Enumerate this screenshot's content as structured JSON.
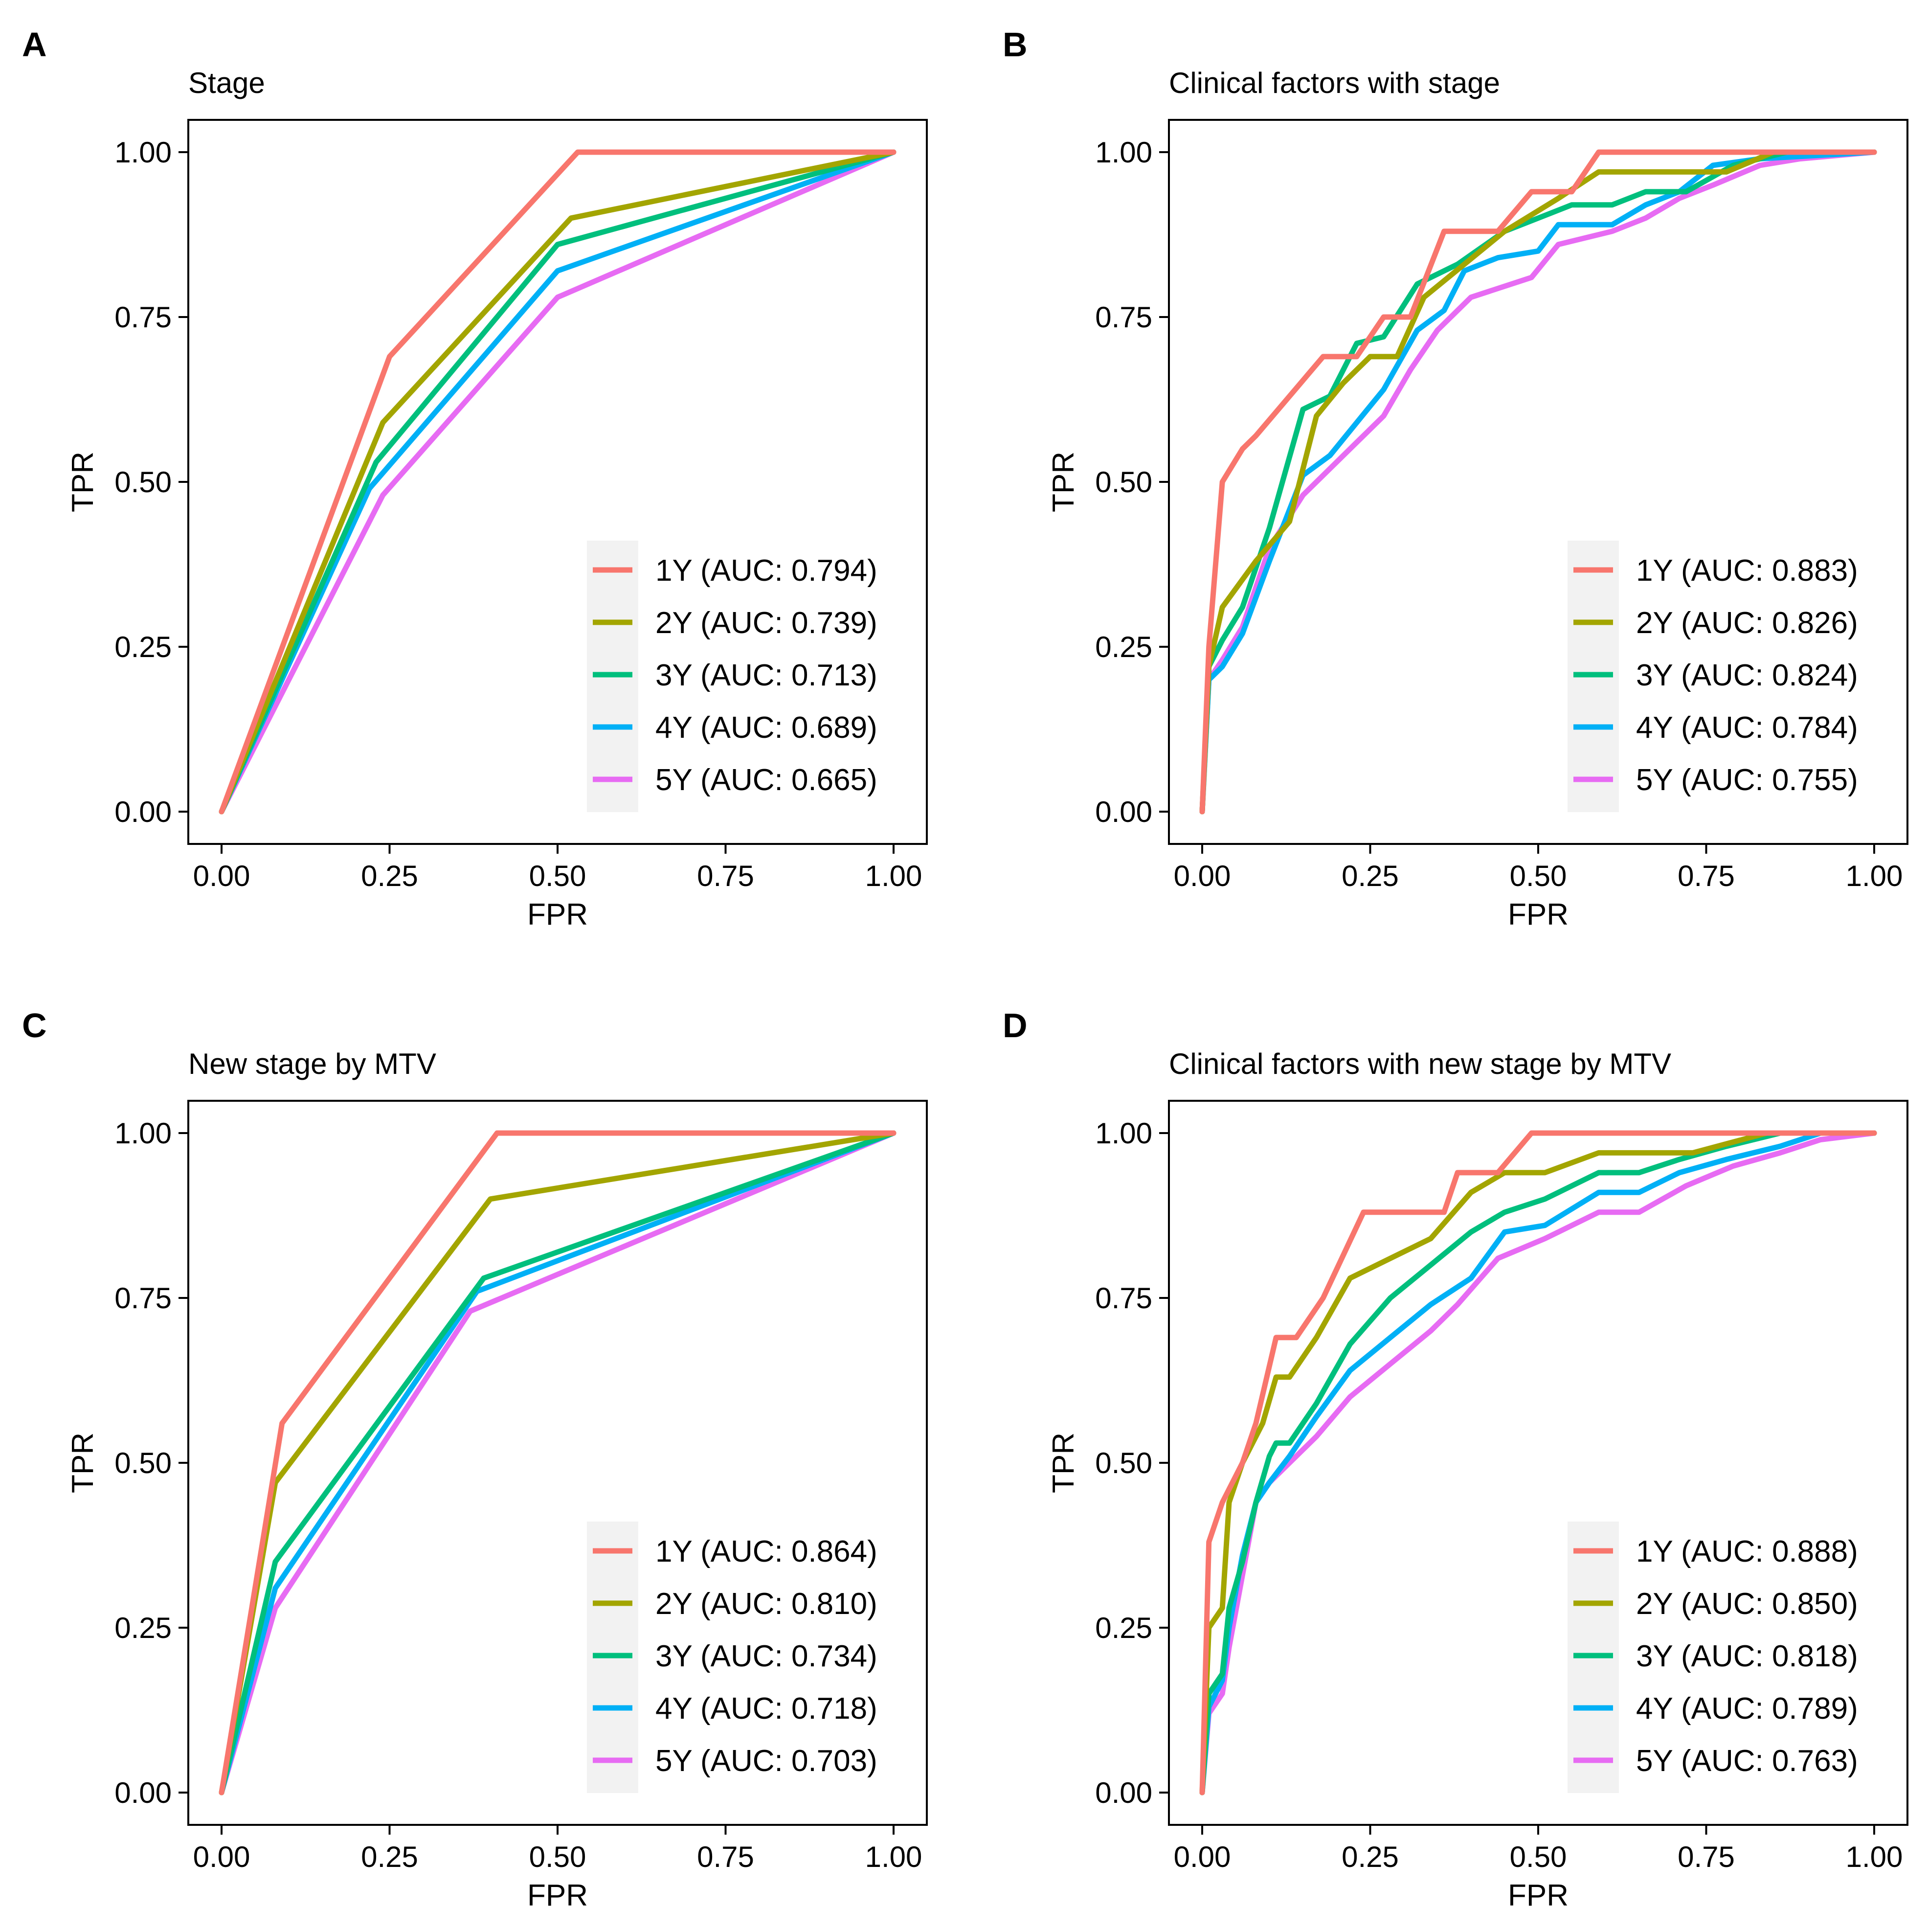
{
  "figure": {
    "x_ticks": [
      "0.00",
      "0.25",
      "0.50",
      "0.75",
      "1.00"
    ],
    "y_ticks": [
      "0.00",
      "0.25",
      "0.50",
      "0.75",
      "1.00"
    ]
  },
  "colors": {
    "1Y": "#F8766D",
    "2Y": "#A3A500",
    "3Y": "#00BF7D",
    "4Y": "#00B0F6",
    "5Y": "#E76BF3"
  },
  "chart_data": [
    {
      "type": "line",
      "panel": "A",
      "title": "Stage",
      "xlabel": "FPR",
      "ylabel": "TPR",
      "xlim": [
        0,
        1
      ],
      "ylim": [
        0,
        1
      ],
      "legend": "bottom-right",
      "series": [
        {
          "name": "1Y",
          "label": "1Y (AUC: 0.794)",
          "x": [
            0,
            0.25,
            0.53,
            1
          ],
          "y": [
            0,
            0.69,
            1,
            1
          ]
        },
        {
          "name": "2Y",
          "label": "2Y (AUC: 0.739)",
          "x": [
            0,
            0.24,
            0.52,
            1
          ],
          "y": [
            0,
            0.59,
            0.9,
            1
          ]
        },
        {
          "name": "3Y",
          "label": "3Y (AUC: 0.713)",
          "x": [
            0,
            0.23,
            0.5,
            1
          ],
          "y": [
            0,
            0.53,
            0.86,
            1
          ]
        },
        {
          "name": "4Y",
          "label": "4Y (AUC: 0.689)",
          "x": [
            0,
            0.22,
            0.5,
            1
          ],
          "y": [
            0,
            0.49,
            0.82,
            1
          ]
        },
        {
          "name": "5Y",
          "label": "5Y (AUC: 0.665)",
          "x": [
            0,
            0.24,
            0.5,
            1
          ],
          "y": [
            0,
            0.48,
            0.78,
            1
          ]
        }
      ]
    },
    {
      "type": "line",
      "panel": "B",
      "title": "Clinical factors with stage",
      "xlabel": "FPR",
      "ylabel": "TPR",
      "xlim": [
        0,
        1
      ],
      "ylim": [
        0,
        1
      ],
      "legend": "bottom-right",
      "series": [
        {
          "name": "1Y",
          "label": "1Y (AUC: 0.883)",
          "x": [
            0,
            0.01,
            0.03,
            0.06,
            0.08,
            0.13,
            0.18,
            0.23,
            0.27,
            0.31,
            0.36,
            0.44,
            0.49,
            0.55,
            0.59,
            1
          ],
          "y": [
            0,
            0.25,
            0.5,
            0.55,
            0.57,
            0.63,
            0.69,
            0.69,
            0.75,
            0.75,
            0.88,
            0.88,
            0.94,
            0.94,
            1,
            1
          ]
        },
        {
          "name": "2Y",
          "label": "2Y (AUC: 0.826)",
          "x": [
            0,
            0.01,
            0.03,
            0.08,
            0.13,
            0.17,
            0.21,
            0.25,
            0.29,
            0.33,
            0.45,
            0.53,
            0.59,
            0.78,
            0.85,
            1
          ],
          "y": [
            0,
            0.22,
            0.31,
            0.38,
            0.44,
            0.6,
            0.65,
            0.69,
            0.69,
            0.78,
            0.88,
            0.93,
            0.97,
            0.97,
            1,
            1
          ]
        },
        {
          "name": "3Y",
          "label": "3Y (AUC: 0.824)",
          "x": [
            0,
            0.01,
            0.03,
            0.06,
            0.1,
            0.15,
            0.19,
            0.23,
            0.27,
            0.32,
            0.38,
            0.45,
            0.55,
            0.61,
            0.66,
            0.72,
            0.79,
            0.87,
            1
          ],
          "y": [
            0,
            0.22,
            0.26,
            0.31,
            0.43,
            0.61,
            0.63,
            0.71,
            0.72,
            0.8,
            0.83,
            0.88,
            0.92,
            0.92,
            0.94,
            0.94,
            0.98,
            1,
            1
          ]
        },
        {
          "name": "4Y",
          "label": "4Y (AUC: 0.784)",
          "x": [
            0,
            0.01,
            0.03,
            0.06,
            0.1,
            0.15,
            0.19,
            0.23,
            0.27,
            0.32,
            0.36,
            0.39,
            0.44,
            0.5,
            0.53,
            0.61,
            0.66,
            0.71,
            0.76,
            0.83,
            1
          ],
          "y": [
            0,
            0.2,
            0.22,
            0.27,
            0.38,
            0.51,
            0.54,
            0.59,
            0.64,
            0.73,
            0.76,
            0.82,
            0.84,
            0.85,
            0.89,
            0.89,
            0.92,
            0.94,
            0.98,
            0.99,
            1
          ]
        },
        {
          "name": "5Y",
          "label": "5Y (AUC: 0.755)",
          "x": [
            0,
            0.01,
            0.03,
            0.06,
            0.1,
            0.15,
            0.19,
            0.23,
            0.27,
            0.31,
            0.35,
            0.4,
            0.49,
            0.53,
            0.61,
            0.66,
            0.71,
            0.76,
            0.83,
            0.89,
            1
          ],
          "y": [
            0,
            0.2,
            0.23,
            0.28,
            0.4,
            0.48,
            0.52,
            0.56,
            0.6,
            0.67,
            0.73,
            0.78,
            0.81,
            0.86,
            0.88,
            0.9,
            0.93,
            0.95,
            0.98,
            0.99,
            1
          ]
        }
      ]
    },
    {
      "type": "line",
      "panel": "C",
      "title": "New stage by MTV",
      "xlabel": "FPR",
      "ylabel": "TPR",
      "xlim": [
        0,
        1
      ],
      "ylim": [
        0,
        1
      ],
      "legend": "bottom-right",
      "series": [
        {
          "name": "1Y",
          "label": "1Y (AUC: 0.864)",
          "x": [
            0,
            0.09,
            0.41,
            1
          ],
          "y": [
            0,
            0.56,
            1,
            1
          ]
        },
        {
          "name": "2Y",
          "label": "2Y (AUC: 0.810)",
          "x": [
            0,
            0.08,
            0.4,
            1
          ],
          "y": [
            0,
            0.47,
            0.9,
            1
          ]
        },
        {
          "name": "3Y",
          "label": "3Y (AUC: 0.734)",
          "x": [
            0,
            0.08,
            0.39,
            1
          ],
          "y": [
            0,
            0.35,
            0.78,
            1
          ]
        },
        {
          "name": "4Y",
          "label": "4Y (AUC: 0.718)",
          "x": [
            0,
            0.08,
            0.38,
            1
          ],
          "y": [
            0,
            0.31,
            0.76,
            1
          ]
        },
        {
          "name": "5Y",
          "label": "5Y (AUC: 0.703)",
          "x": [
            0,
            0.08,
            0.37,
            1
          ],
          "y": [
            0,
            0.28,
            0.73,
            1
          ]
        }
      ]
    },
    {
      "type": "line",
      "panel": "D",
      "title": "Clinical factors with new stage by MTV",
      "xlabel": "FPR",
      "ylabel": "TPR",
      "xlim": [
        0,
        1
      ],
      "ylim": [
        0,
        1
      ],
      "legend": "bottom-right",
      "series": [
        {
          "name": "1Y",
          "label": "1Y (AUC: 0.888)",
          "x": [
            0,
            0.01,
            0.03,
            0.06,
            0.08,
            0.11,
            0.14,
            0.18,
            0.24,
            0.29,
            0.36,
            0.38,
            0.44,
            0.49,
            0.58,
            1
          ],
          "y": [
            0,
            0.38,
            0.44,
            0.5,
            0.56,
            0.69,
            0.69,
            0.75,
            0.88,
            0.88,
            0.88,
            0.94,
            0.94,
            1,
            1,
            1
          ]
        },
        {
          "name": "2Y",
          "label": "2Y (AUC: 0.850)",
          "x": [
            0,
            0.01,
            0.03,
            0.04,
            0.06,
            0.09,
            0.11,
            0.13,
            0.17,
            0.22,
            0.28,
            0.34,
            0.4,
            0.45,
            0.51,
            0.59,
            0.66,
            0.73,
            0.84,
            1
          ],
          "y": [
            0,
            0.25,
            0.28,
            0.44,
            0.5,
            0.56,
            0.63,
            0.63,
            0.69,
            0.78,
            0.81,
            0.84,
            0.91,
            0.94,
            0.94,
            0.97,
            0.97,
            0.97,
            1,
            1
          ]
        },
        {
          "name": "3Y",
          "label": "3Y (AUC: 0.818)",
          "x": [
            0,
            0.01,
            0.03,
            0.04,
            0.06,
            0.08,
            0.1,
            0.11,
            0.13,
            0.17,
            0.22,
            0.28,
            0.34,
            0.4,
            0.45,
            0.51,
            0.59,
            0.65,
            0.71,
            0.78,
            0.86,
            1
          ],
          "y": [
            0,
            0.15,
            0.18,
            0.28,
            0.35,
            0.44,
            0.51,
            0.53,
            0.53,
            0.59,
            0.68,
            0.75,
            0.8,
            0.85,
            0.88,
            0.9,
            0.94,
            0.94,
            0.96,
            0.98,
            1,
            1
          ]
        },
        {
          "name": "4Y",
          "label": "4Y (AUC: 0.789)",
          "x": [
            0,
            0.01,
            0.03,
            0.04,
            0.06,
            0.08,
            0.1,
            0.13,
            0.17,
            0.22,
            0.28,
            0.34,
            0.4,
            0.45,
            0.51,
            0.59,
            0.65,
            0.71,
            0.78,
            0.86,
            0.92,
            1
          ],
          "y": [
            0,
            0.13,
            0.17,
            0.25,
            0.36,
            0.44,
            0.47,
            0.51,
            0.57,
            0.64,
            0.69,
            0.74,
            0.78,
            0.85,
            0.86,
            0.91,
            0.91,
            0.94,
            0.96,
            0.98,
            1,
            1
          ]
        },
        {
          "name": "5Y",
          "label": "5Y (AUC: 0.763)",
          "x": [
            0,
            0.01,
            0.03,
            0.04,
            0.06,
            0.08,
            0.1,
            0.13,
            0.17,
            0.22,
            0.28,
            0.34,
            0.38,
            0.44,
            0.51,
            0.59,
            0.65,
            0.72,
            0.79,
            0.86,
            0.92,
            1
          ],
          "y": [
            0,
            0.12,
            0.15,
            0.22,
            0.33,
            0.44,
            0.47,
            0.5,
            0.54,
            0.6,
            0.65,
            0.7,
            0.74,
            0.81,
            0.84,
            0.88,
            0.88,
            0.92,
            0.95,
            0.97,
            0.99,
            1
          ]
        }
      ]
    }
  ]
}
